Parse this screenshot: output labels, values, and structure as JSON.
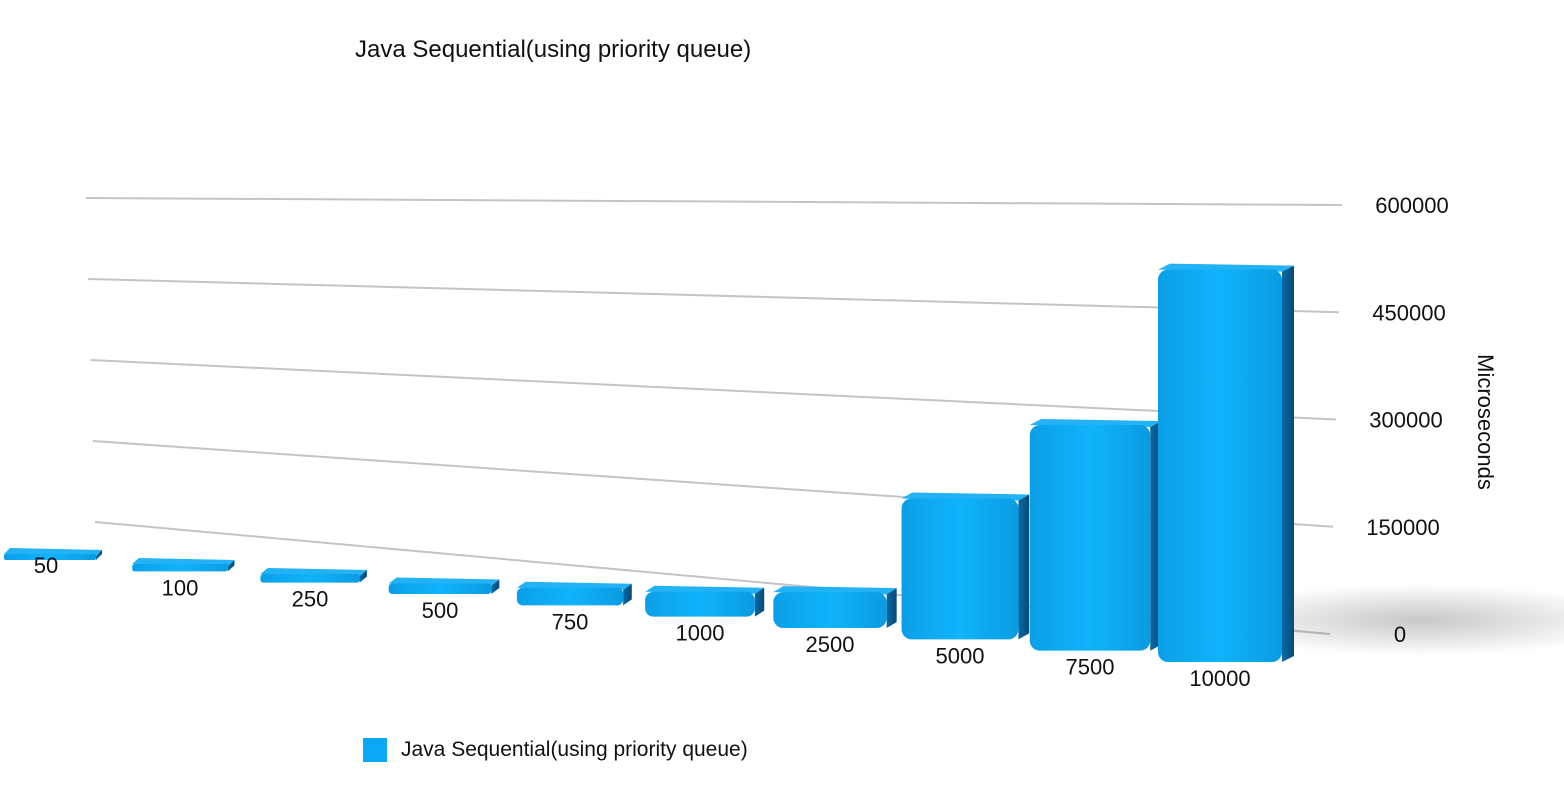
{
  "chart_data": {
    "type": "bar",
    "title": "Java Sequential(using priority queue)",
    "ylabel": "Microseconds",
    "xlabel": "",
    "categories": [
      "50",
      "100",
      "250",
      "500",
      "750",
      "1000",
      "2500",
      "5000",
      "7500",
      "10000"
    ],
    "series": [
      {
        "name": "Java Sequential(using priority queue)",
        "values": [
          1000,
          3000,
          8000,
          15000,
          25000,
          35000,
          50000,
          195000,
          310000,
          535000
        ]
      }
    ],
    "ylim": [
      0,
      600000
    ],
    "yticks": [
      "0",
      "150000",
      "300000",
      "450000",
      "600000"
    ],
    "grid": true,
    "legend": "bottom",
    "colors": {
      "bar": "#0aaaf5",
      "bar_top": "#22b2f5",
      "bar_side": "#06639a",
      "legend": "#09a8f7"
    }
  }
}
